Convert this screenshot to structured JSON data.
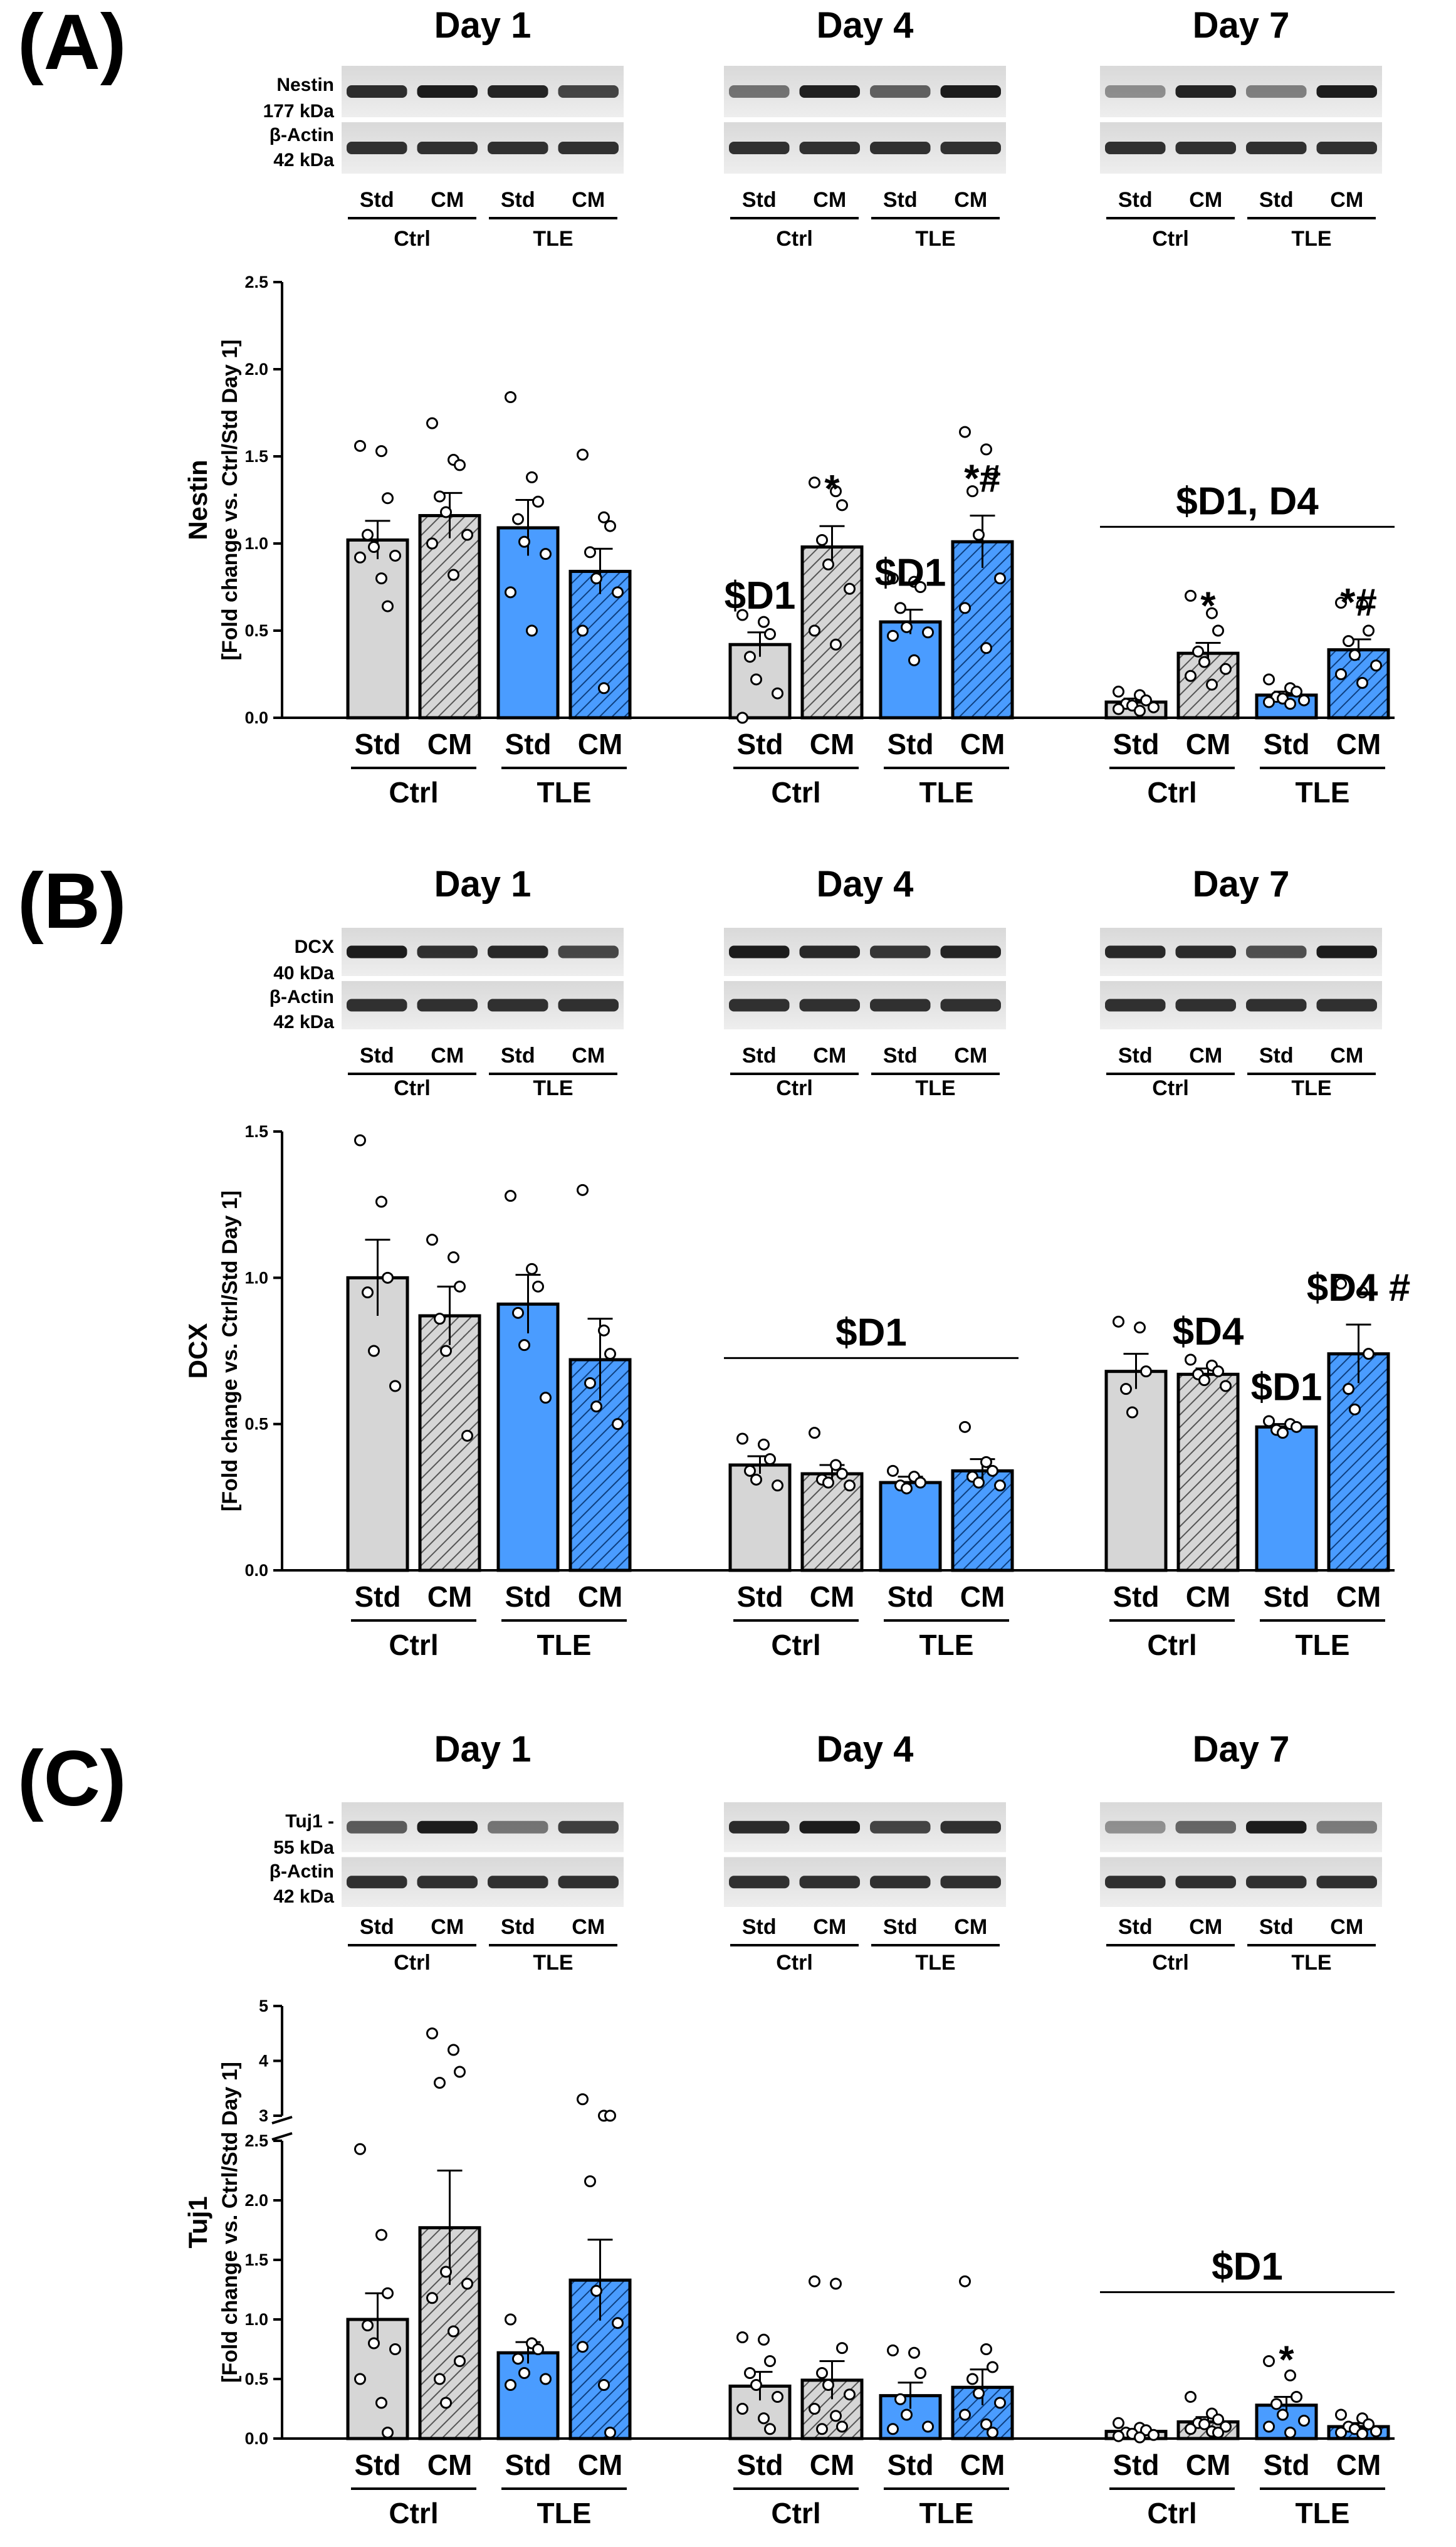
{
  "chart_data": [
    {
      "type": "bar",
      "panel": "(A)",
      "protein": "Nestin",
      "blot_labels": [
        "Nestin",
        "177 kDa",
        "β-Actin",
        "42 kDa"
      ],
      "ylabel": "Nestin",
      "ylabel_sub": "[Fold change vs. Ctrl/Std Day 1]",
      "ylim": [
        0,
        2.5
      ],
      "yticks": [
        "0.0",
        "0.5",
        "1.0",
        "1.5",
        "2.0",
        "2.5"
      ],
      "days": [
        {
          "title": "Day 1",
          "values": [
            1.02,
            1.16,
            1.09,
            0.84
          ],
          "errors": [
            0.11,
            0.13,
            0.16,
            0.13
          ],
          "points": [
            [
              1.56,
              1.53,
              1.26,
              1.05,
              0.98,
              0.93,
              0.92,
              0.8,
              0.64
            ],
            [
              1.69,
              1.48,
              1.45,
              1.27,
              1.18,
              1.05,
              1.0,
              0.82
            ],
            [
              1.84,
              1.38,
              1.24,
              1.14,
              1.01,
              0.94,
              0.72,
              0.5
            ],
            [
              1.51,
              1.15,
              1.1,
              0.95,
              0.8,
              0.72,
              0.5,
              0.17
            ]
          ],
          "annotations": [
            "",
            "",
            "",
            ""
          ]
        },
        {
          "title": "Day 4",
          "values": [
            0.42,
            0.98,
            0.55,
            1.01
          ],
          "errors": [
            0.07,
            0.12,
            0.07,
            0.15
          ],
          "points": [
            [
              0.59,
              0.55,
              0.48,
              0.35,
              0.22,
              0.14,
              0.0
            ],
            [
              1.35,
              1.3,
              1.22,
              1.02,
              0.88,
              0.74,
              0.5,
              0.42
            ],
            [
              0.8,
              0.78,
              0.75,
              0.63,
              0.52,
              0.49,
              0.47,
              0.33
            ],
            [
              1.64,
              1.54,
              1.4,
              1.3,
              1.05,
              0.8,
              0.63,
              0.4
            ]
          ],
          "annotations": [
            "$D1",
            "*",
            "$D1",
            "*#"
          ]
        },
        {
          "title": "Day 7",
          "values": [
            0.09,
            0.37,
            0.13,
            0.39
          ],
          "errors": [
            0.02,
            0.06,
            0.02,
            0.06
          ],
          "points": [
            [
              0.15,
              0.13,
              0.1,
              0.08,
              0.07,
              0.06,
              0.05,
              0.04
            ],
            [
              0.7,
              0.6,
              0.5,
              0.38,
              0.32,
              0.28,
              0.24,
              0.19
            ],
            [
              0.22,
              0.17,
              0.15,
              0.12,
              0.11,
              0.1,
              0.09,
              0.08
            ],
            [
              0.66,
              0.65,
              0.5,
              0.44,
              0.36,
              0.3,
              0.25,
              0.2
            ]
          ],
          "annotations": [
            "",
            "*",
            "",
            "*#"
          ],
          "bracket": "$D1, D4"
        }
      ]
    },
    {
      "type": "bar",
      "panel": "(B)",
      "protein": "DCX",
      "blot_labels": [
        "DCX",
        "40 kDa",
        "β-Actin",
        "42 kDa"
      ],
      "ylabel": "DCX",
      "ylabel_sub": "[Fold change vs. Ctrl/Std Day 1]",
      "ylim": [
        0,
        1.5
      ],
      "yticks": [
        "0.0",
        "0.5",
        "1.0",
        "1.5"
      ],
      "days": [
        {
          "title": "Day 1",
          "values": [
            1.0,
            0.87,
            0.91,
            0.72
          ],
          "errors": [
            0.13,
            0.1,
            0.1,
            0.14
          ],
          "points": [
            [
              1.47,
              1.26,
              1.0,
              0.95,
              0.75,
              0.63
            ],
            [
              1.13,
              1.07,
              0.97,
              0.86,
              0.75,
              0.46
            ],
            [
              1.28,
              1.03,
              0.97,
              0.88,
              0.77,
              0.59
            ],
            [
              1.3,
              0.82,
              0.74,
              0.64,
              0.56,
              0.5
            ]
          ],
          "annotations": [
            "",
            "",
            "",
            ""
          ]
        },
        {
          "title": "Day 4",
          "values": [
            0.36,
            0.33,
            0.3,
            0.34
          ],
          "errors": [
            0.03,
            0.03,
            0.02,
            0.04
          ],
          "points": [
            [
              0.45,
              0.43,
              0.38,
              0.34,
              0.31,
              0.29
            ],
            [
              0.47,
              0.36,
              0.33,
              0.31,
              0.3,
              0.29
            ],
            [
              0.34,
              0.32,
              0.3,
              0.29,
              0.28
            ],
            [
              0.49,
              0.37,
              0.34,
              0.32,
              0.3,
              0.29
            ]
          ],
          "annotations": [
            "",
            "",
            "",
            ""
          ],
          "bracket": "$D1"
        },
        {
          "title": "Day 7",
          "values": [
            0.68,
            0.67,
            0.49,
            0.74
          ],
          "errors": [
            0.06,
            0.02,
            0.01,
            0.1
          ],
          "points": [
            [
              0.85,
              0.83,
              0.68,
              0.62,
              0.54
            ],
            [
              0.72,
              0.7,
              0.68,
              0.67,
              0.65,
              0.63
            ],
            [
              0.51,
              0.5,
              0.49,
              0.48,
              0.47
            ],
            [
              0.98,
              0.95,
              0.74,
              0.62,
              0.55
            ]
          ],
          "annotations": [
            "",
            "$D4",
            "$D1",
            "$D4 #"
          ]
        }
      ]
    },
    {
      "type": "bar",
      "panel": "(C)",
      "protein": "Tuj1",
      "blot_labels": [
        "Tuj1 -",
        "55 kDa",
        "β-Actin",
        "42 kDa"
      ],
      "ylabel": "Tuj1",
      "ylabel_sub": "[Fold change vs. Ctrl/Std Day 1]",
      "ylim": [
        0,
        2.5
      ],
      "ylim_upper": [
        3,
        5
      ],
      "axis_break": true,
      "yticks": [
        "0.0",
        "0.5",
        "1.0",
        "1.5",
        "2.0",
        "2.5"
      ],
      "yticks_upper": [
        "3",
        "4",
        "5"
      ],
      "days": [
        {
          "title": "Day 1",
          "values": [
            1.0,
            1.77,
            0.72,
            1.33
          ],
          "errors": [
            0.22,
            0.48,
            0.09,
            0.34
          ],
          "points": [
            [
              2.43,
              1.71,
              1.22,
              0.95,
              0.8,
              0.75,
              0.5,
              0.3,
              0.05
            ],
            [
              4.5,
              4.2,
              3.8,
              3.6,
              1.4,
              1.3,
              1.18,
              0.9,
              0.65,
              0.5,
              0.3
            ],
            [
              1.0,
              0.8,
              0.75,
              0.67,
              0.55,
              0.5,
              0.45
            ],
            [
              3.3,
              2.8,
              2.65,
              2.16,
              1.24,
              0.97,
              0.77,
              0.45,
              0.05
            ]
          ],
          "annotations": [
            "",
            "",
            "",
            ""
          ]
        },
        {
          "title": "Day 4",
          "values": [
            0.44,
            0.49,
            0.36,
            0.43
          ],
          "errors": [
            0.12,
            0.16,
            0.11,
            0.15
          ],
          "points": [
            [
              0.85,
              0.83,
              0.65,
              0.55,
              0.45,
              0.35,
              0.25,
              0.17,
              0.08
            ],
            [
              1.32,
              1.3,
              0.76,
              0.55,
              0.45,
              0.37,
              0.25,
              0.19,
              0.1,
              0.08
            ],
            [
              0.74,
              0.72,
              0.55,
              0.33,
              0.2,
              0.1,
              0.08
            ],
            [
              1.32,
              0.75,
              0.6,
              0.5,
              0.38,
              0.3,
              0.2,
              0.12,
              0.05
            ]
          ],
          "annotations": [
            "",
            "",
            "",
            ""
          ]
        },
        {
          "title": "Day 7",
          "values": [
            0.06,
            0.14,
            0.28,
            0.1
          ],
          "errors": [
            0.02,
            0.04,
            0.07,
            0.03
          ],
          "points": [
            [
              0.13,
              0.09,
              0.07,
              0.05,
              0.04,
              0.03,
              0.02,
              0.01
            ],
            [
              0.35,
              0.21,
              0.16,
              0.13,
              0.12,
              0.1,
              0.08,
              0.06,
              0.05
            ],
            [
              0.65,
              0.53,
              0.35,
              0.29,
              0.2,
              0.15,
              0.1,
              0.05
            ],
            [
              0.2,
              0.17,
              0.12,
              0.1,
              0.08,
              0.06,
              0.05,
              0.04
            ]
          ],
          "annotations": [
            "",
            "",
            "*",
            ""
          ],
          "bracket": "$D1"
        }
      ]
    }
  ],
  "lanes": [
    "Std",
    "CM",
    "Std",
    "CM"
  ],
  "groups": [
    "Ctrl",
    "TLE"
  ],
  "colors": {
    "ctrl": "#d6d6d6",
    "tle": "#4a9cff",
    "black": "#000000",
    "white": "#ffffff"
  }
}
